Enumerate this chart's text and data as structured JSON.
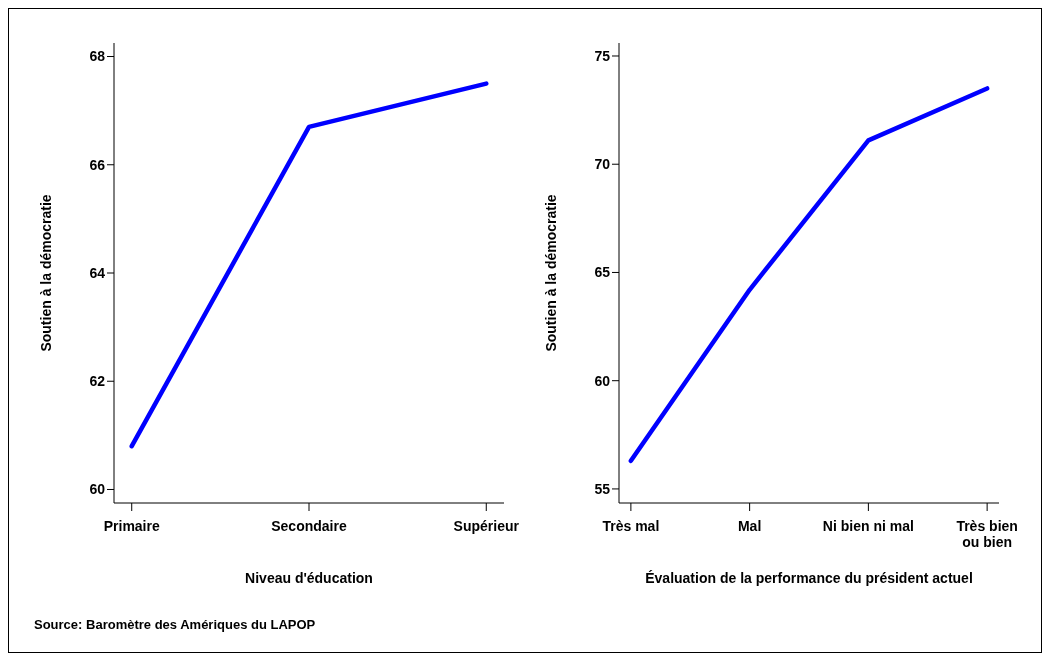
{
  "chart_data": [
    {
      "type": "line",
      "categories": [
        "Primaire",
        "Secondaire",
        "Supérieur"
      ],
      "values": [
        60.8,
        66.7,
        67.5
      ],
      "color": "#0000ff",
      "ylim": [
        59.75,
        68.25
      ],
      "yticks": [
        60,
        62,
        64,
        66,
        68
      ],
      "xlabel": "Niveau d'éducation",
      "ylabel": "Soutien à la démocratie",
      "grid": false,
      "marker": "none",
      "annotations": [
        "Source: Baromètre des Amériques du  LAPOP"
      ]
    },
    {
      "type": "line",
      "categories": [
        "Très mal",
        "Mal",
        "Ni bien ni mal",
        "Très bien\nou bien"
      ],
      "values": [
        56.3,
        64.2,
        71.1,
        73.5
      ],
      "color": "#0000ff",
      "ylim": [
        54.35,
        75.6
      ],
      "yticks": [
        55,
        60,
        65,
        70,
        75
      ],
      "xlabel": "Évaluation de la performance du président actuel",
      "ylabel": "Soutien à la démocratie",
      "grid": false,
      "marker": "none"
    }
  ]
}
